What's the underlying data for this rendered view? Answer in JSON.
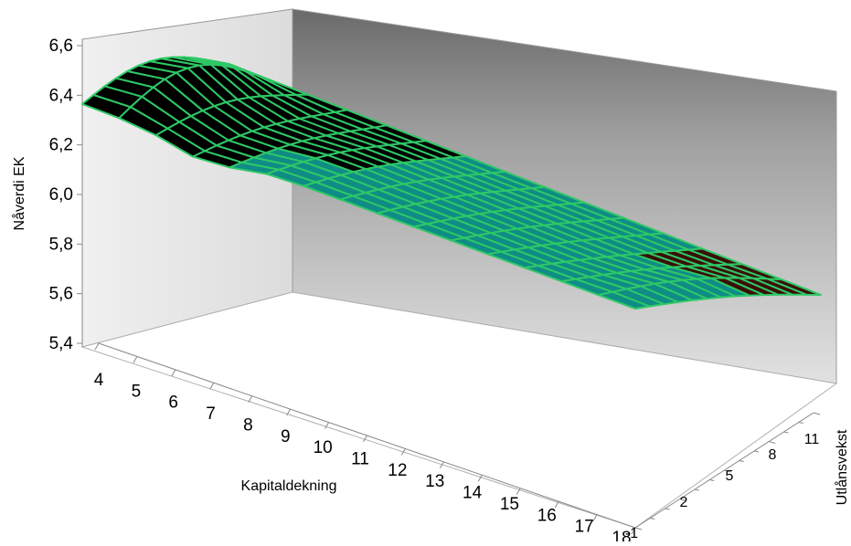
{
  "chart_data": {
    "type": "surface",
    "title": "",
    "zlabel": "Nåverdi EK",
    "xlabel": "Kapitaldekning",
    "ylabel": "Utlånsvekst",
    "zlim": [
      5.4,
      6.6
    ],
    "z_ticks": [
      "6,6",
      "6,4",
      "6,2",
      "6,0",
      "5,8",
      "5,6",
      "5,4"
    ],
    "x_tick_labels": [
      "4",
      "5",
      "6",
      "7",
      "8",
      "9",
      "10",
      "11",
      "12",
      "13",
      "14",
      "15",
      "16",
      "17",
      "18"
    ],
    "y_tick_labels": [
      "-1",
      "2",
      "5",
      "8",
      "11"
    ],
    "x_range": [
      4,
      18
    ],
    "y_range": [
      -1,
      12
    ],
    "grid_steps": {
      "x": 15,
      "y": 13
    },
    "surface_corner_values": {
      "front_left": 6.36,
      "back_left_peak": 6.52,
      "front_right": 5.58,
      "back_right": 5.6
    },
    "colors": {
      "mesh_lines": "#2ec866",
      "surface_top": "#000000",
      "surface_under": "#0f8c86",
      "back_wall_dark": "#707070",
      "back_wall_light": "#dedede",
      "side_wall": "#e4e4e4",
      "floor": "#ffffff"
    },
    "grid": true
  }
}
